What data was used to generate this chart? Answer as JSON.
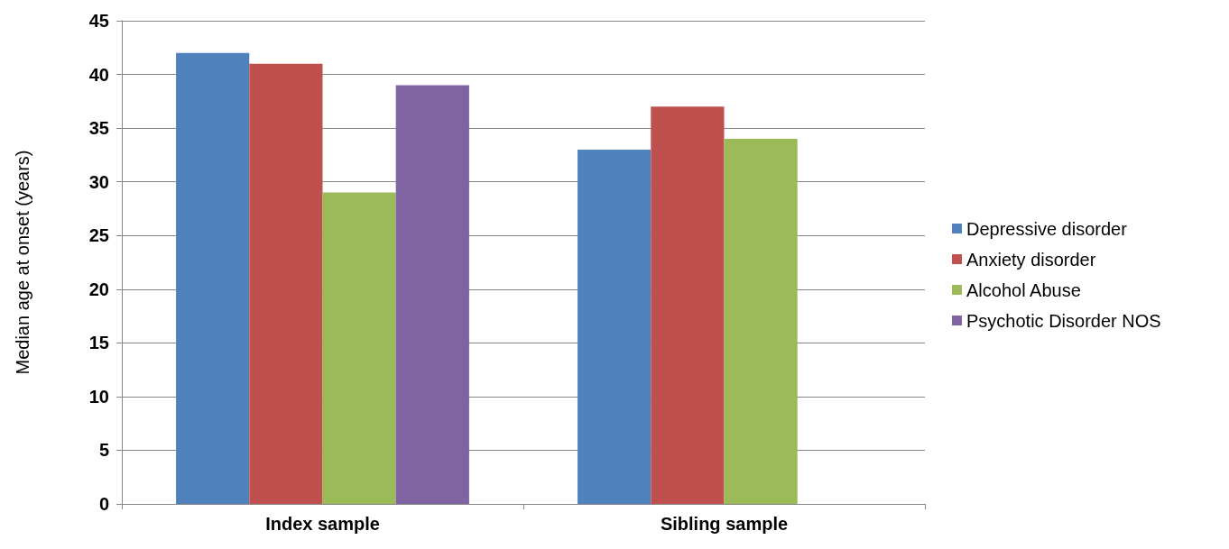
{
  "chart_data": {
    "type": "bar",
    "ylabel": "Median age at onset (years)",
    "categories": [
      "Index sample",
      "Sibling sample"
    ],
    "series": [
      {
        "name": "Depressive disorder",
        "color": "#4f81bd",
        "values": [
          42,
          33
        ]
      },
      {
        "name": "Anxiety disorder",
        "color": "#c0504d",
        "values": [
          41,
          37
        ]
      },
      {
        "name": "Alcohol Abuse",
        "color": "#9bbb59",
        "values": [
          29,
          34
        ]
      },
      {
        "name": "Psychotic Disorder NOS",
        "color": "#8064a2",
        "values": [
          39,
          null
        ]
      }
    ],
    "ylim": [
      0,
      45
    ],
    "yticks": [
      0,
      5,
      10,
      15,
      20,
      25,
      30,
      35,
      40,
      45
    ],
    "grid": "y",
    "legend": "right"
  }
}
